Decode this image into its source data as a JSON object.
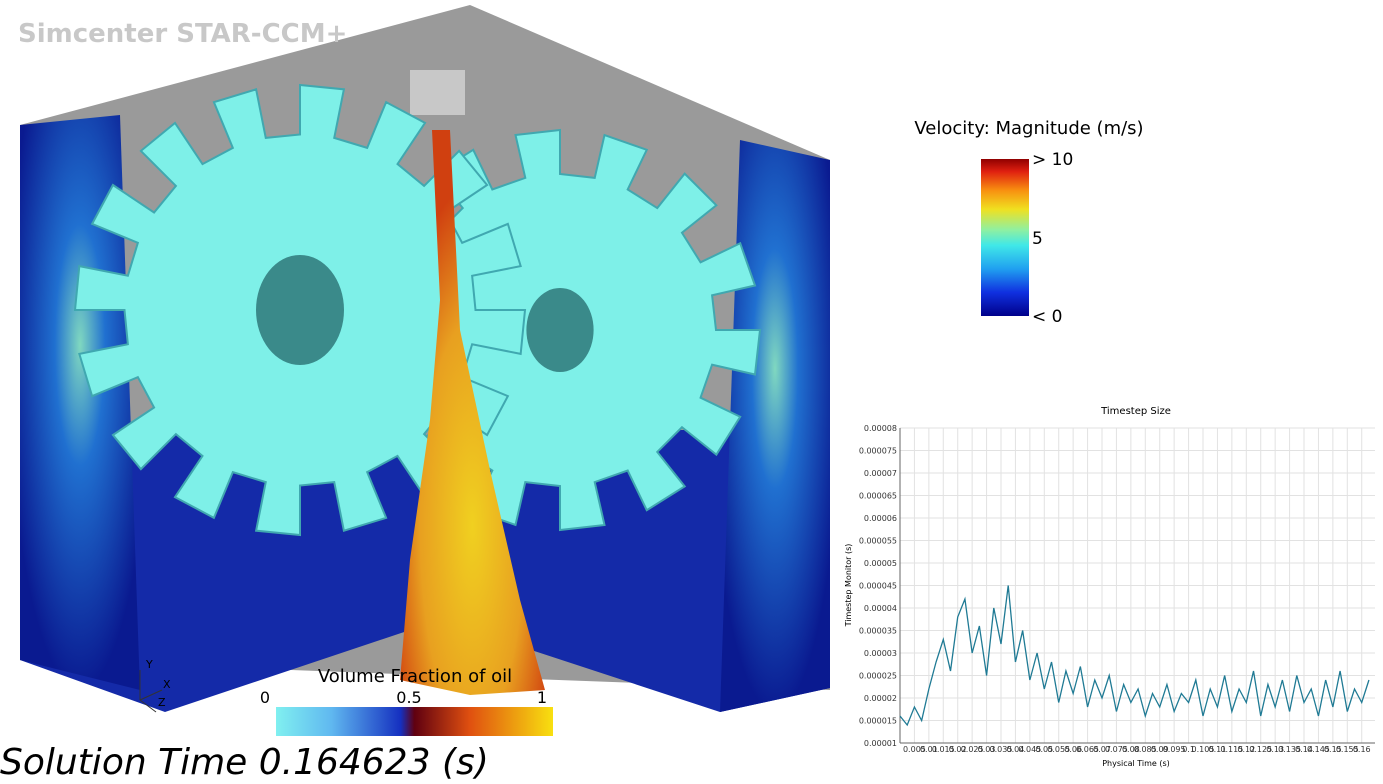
{
  "brand": "Simcenter STAR-CCM+",
  "solution_time": "Solution Time 0.164623 (s)",
  "triad": [
    "Y",
    "X",
    "Z"
  ],
  "velocity_legend": {
    "title": "Velocity: Magnitude (m/s)",
    "labels": [
      "> 10",
      "5",
      "< 0"
    ]
  },
  "vof_legend": {
    "title": "Volume Fraction of oil",
    "labels": [
      "0",
      "0.5",
      "1"
    ]
  },
  "chart_data": {
    "type": "line",
    "title": "Timestep Size",
    "x_label": "Physical Time (s)",
    "y_label": "Timestep Monitor (s)",
    "color": "#1f7a94",
    "grid": true,
    "xlim": [
      0,
      0.1646
    ],
    "ylim": [
      1e-05,
      8e-05
    ],
    "xticks": [
      0.005,
      0.01,
      0.015,
      0.02,
      0.025,
      0.03,
      0.035,
      0.04,
      0.045,
      0.05,
      0.055,
      0.06,
      0.065,
      0.07,
      0.075,
      0.08,
      0.085,
      0.09,
      0.095,
      0.1,
      0.105,
      0.11,
      0.115,
      0.12,
      0.125,
      0.13,
      0.135,
      0.14,
      0.145,
      0.15,
      0.155,
      0.16
    ],
    "yticks": [
      1e-05,
      1.5e-05,
      2e-05,
      2.5e-05,
      3e-05,
      3.5e-05,
      4e-05,
      4.5e-05,
      5e-05,
      5.5e-05,
      6e-05,
      6.5e-05,
      7e-05,
      7.5e-05,
      8e-05
    ],
    "x": [
      0,
      0.0025,
      0.005,
      0.0075,
      0.01,
      0.0125,
      0.015,
      0.0175,
      0.02,
      0.0225,
      0.025,
      0.0275,
      0.03,
      0.0325,
      0.035,
      0.0375,
      0.04,
      0.0425,
      0.045,
      0.0475,
      0.05,
      0.0525,
      0.055,
      0.0575,
      0.06,
      0.0625,
      0.065,
      0.0675,
      0.07,
      0.0725,
      0.075,
      0.0775,
      0.08,
      0.0825,
      0.085,
      0.0875,
      0.09,
      0.0925,
      0.095,
      0.0975,
      0.1,
      0.1025,
      0.105,
      0.1075,
      0.11,
      0.1125,
      0.115,
      0.1175,
      0.12,
      0.1225,
      0.125,
      0.1275,
      0.13,
      0.1325,
      0.135,
      0.1375,
      0.14,
      0.1425,
      0.145,
      0.1475,
      0.15,
      0.1525,
      0.155,
      0.1575,
      0.16,
      0.1625
    ],
    "values": [
      1.6e-05,
      1.4e-05,
      1.8e-05,
      1.5e-05,
      2.2e-05,
      2.8e-05,
      3.3e-05,
      2.6e-05,
      3.8e-05,
      4.2e-05,
      3e-05,
      3.6e-05,
      2.5e-05,
      4e-05,
      3.2e-05,
      4.5e-05,
      2.8e-05,
      3.5e-05,
      2.4e-05,
      3e-05,
      2.2e-05,
      2.8e-05,
      1.9e-05,
      2.6e-05,
      2.1e-05,
      2.7e-05,
      1.8e-05,
      2.4e-05,
      2e-05,
      2.5e-05,
      1.7e-05,
      2.3e-05,
      1.9e-05,
      2.2e-05,
      1.6e-05,
      2.1e-05,
      1.8e-05,
      2.3e-05,
      1.7e-05,
      2.1e-05,
      1.9e-05,
      2.4e-05,
      1.6e-05,
      2.2e-05,
      1.8e-05,
      2.5e-05,
      1.7e-05,
      2.2e-05,
      1.9e-05,
      2.6e-05,
      1.6e-05,
      2.3e-05,
      1.8e-05,
      2.4e-05,
      1.7e-05,
      2.5e-05,
      1.9e-05,
      2.2e-05,
      1.6e-05,
      2.4e-05,
      1.8e-05,
      2.6e-05,
      1.7e-05,
      2.2e-05,
      1.9e-05,
      2.4e-05
    ]
  }
}
